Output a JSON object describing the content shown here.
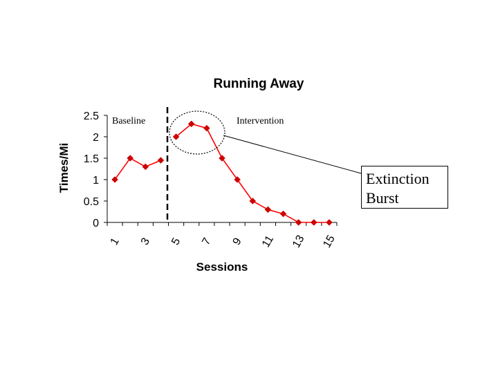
{
  "chart_data": {
    "type": "line",
    "title": "Running Away",
    "xlabel": "Sessions",
    "ylabel": "Times/Mi",
    "x": [
      1,
      2,
      3,
      4,
      5,
      6,
      7,
      8,
      9,
      10,
      11,
      12,
      13,
      14,
      15
    ],
    "x_tick_labels": [
      "1",
      "3",
      "5",
      "7",
      "9",
      "11",
      "13",
      "15"
    ],
    "y_tick_labels": [
      "0",
      "0.5",
      "1",
      "1.5",
      "2",
      "2.5"
    ],
    "ylim": [
      0,
      2.5
    ],
    "grid": false,
    "series": [
      {
        "name": "Baseline",
        "x": [
          1,
          2,
          3,
          4
        ],
        "values": [
          1.0,
          1.5,
          1.3,
          1.45
        ]
      },
      {
        "name": "Intervention",
        "x": [
          5,
          6,
          7,
          8,
          9,
          10,
          11,
          12,
          13,
          14,
          15
        ],
        "values": [
          2.0,
          2.3,
          2.2,
          1.5,
          1.0,
          0.5,
          0.3,
          0.2,
          0.0,
          0.0,
          0.0
        ]
      }
    ],
    "phase_change_after_session": 4.5,
    "annotations": {
      "baseline_label": "Baseline",
      "intervention_label": "Intervention",
      "callout": [
        "Extinction",
        "Burst"
      ]
    },
    "colors": {
      "series": "#ff0000",
      "marker": "#cc0000",
      "axis": "#000000"
    }
  }
}
